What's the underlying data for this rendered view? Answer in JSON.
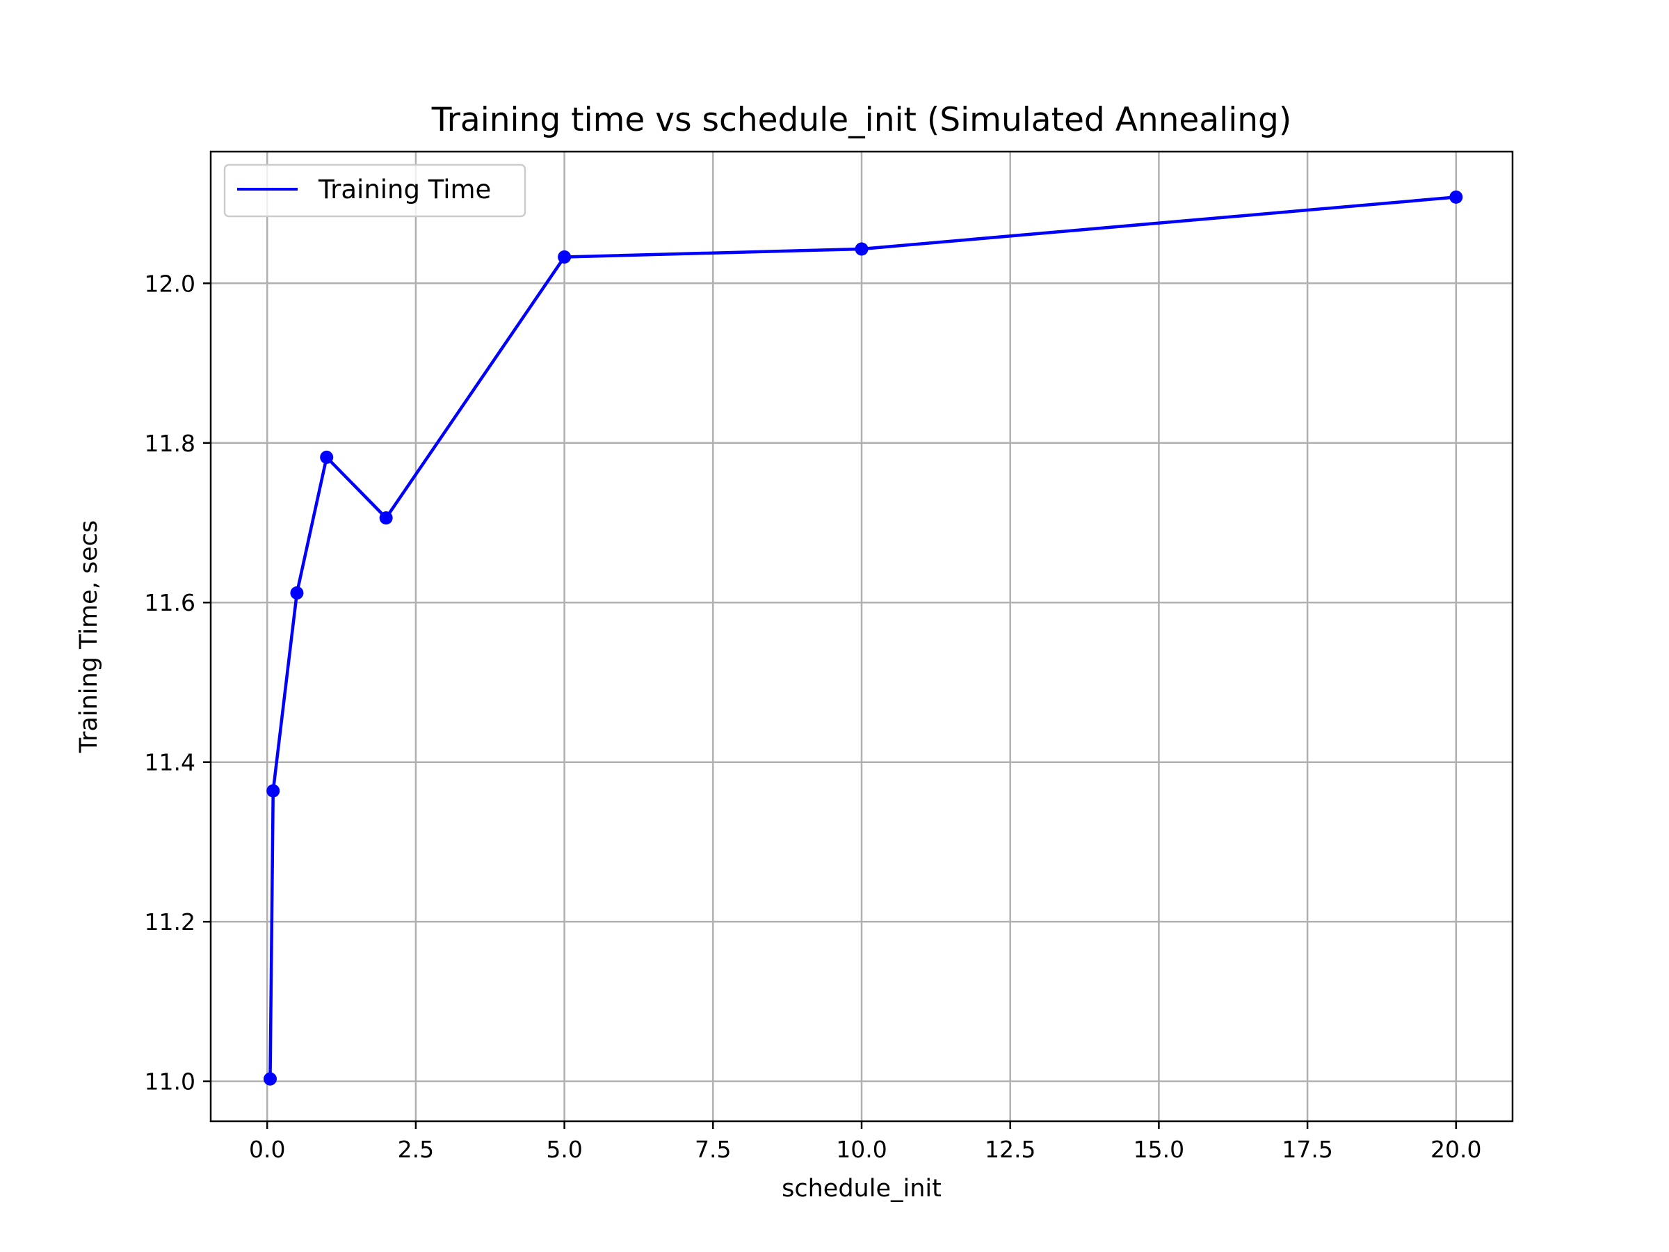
{
  "chart_data": {
    "type": "line",
    "title": "Training time vs schedule_init (Simulated Annealing)",
    "xlabel": "schedule_init",
    "ylabel": "Training Time, secs",
    "xlim": [
      -0.95,
      20.95
    ],
    "ylim": [
      10.95,
      12.165
    ],
    "xticks": [
      0.0,
      2.5,
      5.0,
      7.5,
      10.0,
      12.5,
      15.0,
      17.5,
      20.0
    ],
    "xtick_labels": [
      "0.0",
      "2.5",
      "5.0",
      "7.5",
      "10.0",
      "12.5",
      "15.0",
      "17.5",
      "20.0"
    ],
    "yticks": [
      11.0,
      11.2,
      11.4,
      11.6,
      11.8,
      12.0
    ],
    "ytick_labels": [
      "11.0",
      "11.2",
      "11.4",
      "11.6",
      "11.8",
      "12.0"
    ],
    "grid": true,
    "legend_position": "top-left",
    "series": [
      {
        "name": "Training Time",
        "color": "#0000ff",
        "x": [
          0.05,
          0.1,
          0.5,
          1.0,
          2.0,
          5.0,
          10.0,
          20.0
        ],
        "y": [
          11.003,
          11.364,
          11.612,
          11.782,
          11.706,
          12.033,
          12.043,
          12.108
        ]
      }
    ]
  }
}
